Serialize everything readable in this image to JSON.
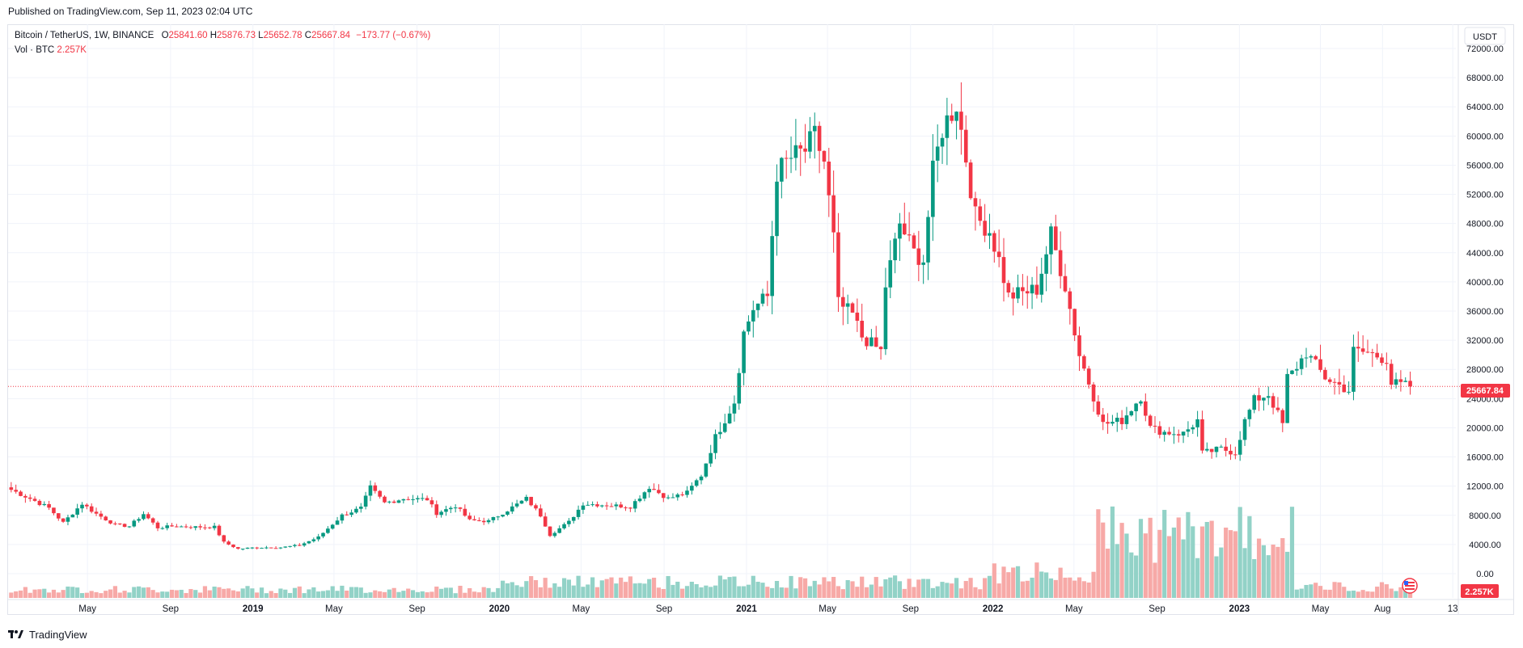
{
  "header": {
    "published": "Published on TradingView.com, Sep 11, 2023 02:04 UTC"
  },
  "legend": {
    "symbol": "Bitcoin / TetherUS, 1W, BINANCE",
    "o_label": "O",
    "o": "25841.60",
    "h_label": "H",
    "h": "25876.73",
    "l_label": "L",
    "l": "25652.78",
    "c_label": "C",
    "c": "25667.84",
    "change": "−173.77 (−0.67%)",
    "vol_label": "Vol · BTC",
    "vol": "2.257K"
  },
  "axis": {
    "currency": "USDT",
    "last_price_label": "25667.84",
    "last_volume_label": "2.257K"
  },
  "footer": {
    "brand": "TradingView"
  },
  "colors": {
    "up": "#089981",
    "down": "#f23645",
    "up_vol": "#92d2c7",
    "down_vol": "#f7a9a7",
    "grid": "#f0f3fa"
  },
  "chart_data": {
    "type": "candlestick",
    "title": "Bitcoin / TetherUS, 1W, BINANCE",
    "ylim": [
      0,
      74000
    ],
    "y_ticks": [
      0,
      4000,
      8000,
      12000,
      16000,
      20000,
      24000,
      28000,
      32000,
      36000,
      40000,
      44000,
      48000,
      52000,
      56000,
      60000,
      64000,
      68000,
      72000
    ],
    "y_tick_labels": [
      "0.00",
      "4000.00",
      "8000.00",
      "12000.00",
      "16000.00",
      "20000.00",
      "24000.00",
      "28000.00",
      "32000.00",
      "36000.00",
      "40000.00",
      "44000.00",
      "48000.00",
      "52000.00",
      "56000.00",
      "60000.00",
      "64000.00",
      "68000.00",
      "72000.00"
    ],
    "x_ticks": [
      {
        "label": "May",
        "date": "2018-05-01"
      },
      {
        "label": "Sep",
        "date": "2018-09-01"
      },
      {
        "label": "2019",
        "date": "2019-01-01"
      },
      {
        "label": "May",
        "date": "2019-05-01"
      },
      {
        "label": "Sep",
        "date": "2019-09-01"
      },
      {
        "label": "2020",
        "date": "2020-01-01"
      },
      {
        "label": "May",
        "date": "2020-05-01"
      },
      {
        "label": "Sep",
        "date": "2020-09-01"
      },
      {
        "label": "2021",
        "date": "2021-01-01"
      },
      {
        "label": "May",
        "date": "2021-05-01"
      },
      {
        "label": "Sep",
        "date": "2021-09-01"
      },
      {
        "label": "2022",
        "date": "2022-01-01"
      },
      {
        "label": "May",
        "date": "2022-05-01"
      },
      {
        "label": "Sep",
        "date": "2022-09-01"
      },
      {
        "label": "2023",
        "date": "2023-01-01"
      },
      {
        "label": "May",
        "date": "2023-05-01"
      },
      {
        "label": "Aug",
        "date": "2023-08-01"
      },
      {
        "label": "13",
        "date": "2023-11-13"
      }
    ],
    "last_price": 25667.84,
    "series": [
      {
        "name": "close",
        "points": [
          [
            "2018-01-08",
            11500
          ],
          [
            "2018-02-05",
            10300
          ],
          [
            "2018-03-05",
            9000
          ],
          [
            "2018-03-26",
            7000
          ],
          [
            "2018-04-23",
            9600
          ],
          [
            "2018-05-14",
            8200
          ],
          [
            "2018-06-11",
            6700
          ],
          [
            "2018-07-02",
            6500
          ],
          [
            "2018-07-23",
            8200
          ],
          [
            "2018-08-13",
            6300
          ],
          [
            "2018-09-03",
            6500
          ],
          [
            "2018-10-08",
            6400
          ],
          [
            "2018-11-05",
            6400
          ],
          [
            "2018-11-19",
            4300
          ],
          [
            "2018-12-10",
            3400
          ],
          [
            "2019-01-07",
            3600
          ],
          [
            "2019-02-11",
            3600
          ],
          [
            "2019-03-11",
            3900
          ],
          [
            "2019-04-08",
            5000
          ],
          [
            "2019-05-13",
            8000
          ],
          [
            "2019-06-10",
            9000
          ],
          [
            "2019-06-24",
            11800
          ],
          [
            "2019-07-15",
            9700
          ],
          [
            "2019-08-12",
            10300
          ],
          [
            "2019-09-16",
            10200
          ],
          [
            "2019-09-30",
            8300
          ],
          [
            "2019-10-28",
            9300
          ],
          [
            "2019-11-18",
            7300
          ],
          [
            "2019-12-16",
            7200
          ],
          [
            "2020-01-13",
            8700
          ],
          [
            "2020-02-10",
            10300
          ],
          [
            "2020-03-02",
            8000
          ],
          [
            "2020-03-16",
            5300
          ],
          [
            "2020-04-13",
            7100
          ],
          [
            "2020-05-04",
            9600
          ],
          [
            "2020-06-08",
            9400
          ],
          [
            "2020-07-13",
            9200
          ],
          [
            "2020-08-10",
            11900
          ],
          [
            "2020-09-07",
            10300
          ],
          [
            "2020-10-05",
            11100
          ],
          [
            "2020-10-26",
            13500
          ],
          [
            "2020-11-16",
            18700
          ],
          [
            "2020-12-14",
            23600
          ],
          [
            "2020-12-28",
            33000
          ],
          [
            "2021-01-11",
            36400
          ],
          [
            "2021-02-01",
            38000
          ],
          [
            "2021-02-15",
            55000
          ],
          [
            "2021-03-08",
            57000
          ],
          [
            "2021-03-29",
            58000
          ],
          [
            "2021-04-12",
            60000
          ],
          [
            "2021-04-26",
            56500
          ],
          [
            "2021-05-10",
            46000
          ],
          [
            "2021-05-17",
            37000
          ],
          [
            "2021-06-07",
            35500
          ],
          [
            "2021-06-21",
            32500
          ],
          [
            "2021-07-19",
            30500
          ],
          [
            "2021-07-26",
            39500
          ],
          [
            "2021-08-16",
            48000
          ],
          [
            "2021-09-06",
            44000
          ],
          [
            "2021-09-20",
            43000
          ],
          [
            "2021-10-04",
            55000
          ],
          [
            "2021-10-18",
            61000
          ],
          [
            "2021-11-08",
            64500
          ],
          [
            "2021-11-22",
            57000
          ],
          [
            "2021-12-06",
            49000
          ],
          [
            "2021-12-27",
            47000
          ],
          [
            "2022-01-10",
            43000
          ],
          [
            "2022-01-24",
            38000
          ],
          [
            "2022-02-14",
            38500
          ],
          [
            "2022-03-07",
            39000
          ],
          [
            "2022-03-28",
            46500
          ],
          [
            "2022-04-18",
            39500
          ],
          [
            "2022-05-09",
            30000
          ],
          [
            "2022-06-13",
            20500
          ],
          [
            "2022-07-11",
            21000
          ],
          [
            "2022-08-08",
            24300
          ],
          [
            "2022-08-22",
            20000
          ],
          [
            "2022-09-12",
            19400
          ],
          [
            "2022-10-10",
            19200
          ],
          [
            "2022-10-31",
            21000
          ],
          [
            "2022-11-07",
            16500
          ],
          [
            "2022-12-05",
            17100
          ],
          [
            "2022-12-26",
            16600
          ],
          [
            "2023-01-09",
            20900
          ],
          [
            "2023-01-23",
            23800
          ],
          [
            "2023-02-13",
            24600
          ],
          [
            "2023-03-06",
            20500
          ],
          [
            "2023-03-13",
            26900
          ],
          [
            "2023-03-20",
            27500
          ],
          [
            "2023-04-10",
            30300
          ],
          [
            "2023-05-08",
            26900
          ],
          [
            "2023-06-12",
            25100
          ],
          [
            "2023-06-19",
            30500
          ],
          [
            "2023-07-10",
            30300
          ],
          [
            "2023-08-07",
            29400
          ],
          [
            "2023-08-14",
            26100
          ],
          [
            "2023-09-11",
            25667.84
          ]
        ]
      }
    ],
    "volume_axis_max_btc": 18000
  }
}
